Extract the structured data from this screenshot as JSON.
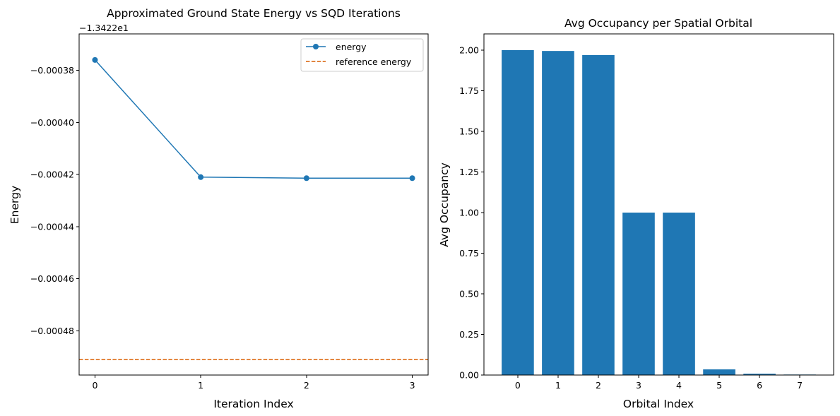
{
  "chart_data": [
    {
      "type": "line",
      "title": "Approximated Ground State Energy vs SQD Iterations",
      "xlabel": "Iteration Index",
      "ylabel": "Energy",
      "offset_label": "−1.3422e1",
      "x": [
        0,
        1,
        2,
        3
      ],
      "x_tick_labels": [
        "0",
        "1",
        "2",
        "3"
      ],
      "y_tick_values": [
        -0.00048,
        -0.00046,
        -0.00044,
        -0.00042,
        -0.0004,
        -0.00038
      ],
      "y_tick_labels": [
        "−0.00048",
        "−0.00046",
        "−0.00044",
        "−0.00042",
        "−0.00040",
        "−0.00038"
      ],
      "xlim": [
        -0.15,
        3.15
      ],
      "ylim": [
        -0.000497,
        -0.000366
      ],
      "series": [
        {
          "name": "energy",
          "values": [
            -0.000376,
            -0.000421,
            -0.0004214,
            -0.0004214
          ],
          "color": "#1f77b4",
          "marker": "circle"
        }
      ],
      "reference": {
        "name": "reference energy",
        "value": -0.000491,
        "color": "#d95f02",
        "style": "dashed"
      },
      "legend_position": "upper right",
      "grid": false
    },
    {
      "type": "bar",
      "title": "Avg Occupancy per Spatial Orbital",
      "xlabel": "Orbital Index",
      "ylabel": "Avg Occupancy",
      "categories": [
        "0",
        "1",
        "2",
        "3",
        "4",
        "5",
        "6",
        "7"
      ],
      "values": [
        2.0,
        1.995,
        1.97,
        1.0,
        1.0,
        0.035,
        0.008,
        0.003
      ],
      "y_tick_values": [
        0,
        0.25,
        0.5,
        0.75,
        1.0,
        1.25,
        1.5,
        1.75,
        2.0
      ],
      "y_tick_labels": [
        "0.00",
        "0.25",
        "0.50",
        "0.75",
        "1.00",
        "1.25",
        "1.50",
        "1.75",
        "2.00"
      ],
      "ylim": [
        0,
        2.1
      ],
      "color": "#1f77b4",
      "grid": false
    }
  ]
}
